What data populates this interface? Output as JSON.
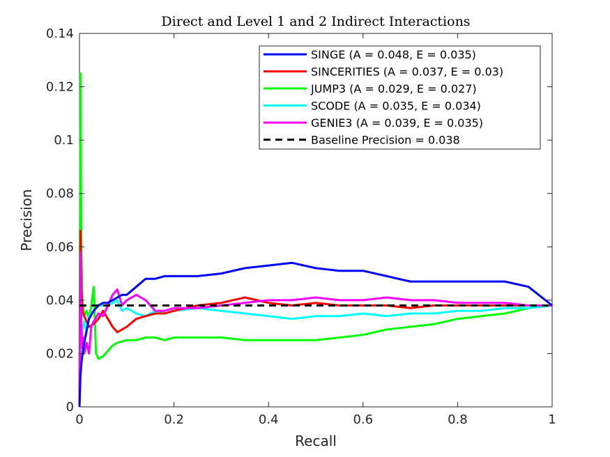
{
  "chart_data": {
    "type": "line",
    "title": "Direct and Level 1 and 2 Indirect Interactions",
    "xlabel": "Recall",
    "ylabel": "Precision",
    "xlim": [
      0,
      1
    ],
    "ylim": [
      0,
      0.14
    ],
    "xticks": [
      0,
      0.2,
      0.4,
      0.6,
      0.8,
      1
    ],
    "xtick_labels": [
      "0",
      "0.2",
      "0.4",
      "0.6",
      "0.8",
      "1"
    ],
    "yticks": [
      0,
      0.02,
      0.04,
      0.06,
      0.08,
      0.1,
      0.12,
      0.14
    ],
    "ytick_labels": [
      "0",
      "0.02",
      "0.04",
      "0.06",
      "0.08",
      "0.1",
      "0.12",
      "0.14"
    ],
    "grid": false,
    "legend_position": "top-right",
    "series": [
      {
        "name": "SINGE (A = 0.048, E = 0.035)",
        "color": "#0000ff",
        "x": [
          0,
          0.002,
          0.005,
          0.01,
          0.02,
          0.03,
          0.04,
          0.05,
          0.06,
          0.07,
          0.08,
          0.09,
          0.1,
          0.12,
          0.14,
          0.16,
          0.18,
          0.2,
          0.25,
          0.3,
          0.35,
          0.4,
          0.45,
          0.5,
          0.55,
          0.6,
          0.65,
          0.7,
          0.75,
          0.8,
          0.85,
          0.9,
          0.95,
          1
        ],
        "y": [
          0,
          0.012,
          0.018,
          0.024,
          0.033,
          0.036,
          0.038,
          0.039,
          0.039,
          0.04,
          0.041,
          0.042,
          0.042,
          0.045,
          0.048,
          0.048,
          0.049,
          0.049,
          0.049,
          0.05,
          0.052,
          0.053,
          0.054,
          0.052,
          0.051,
          0.051,
          0.049,
          0.047,
          0.047,
          0.047,
          0.047,
          0.047,
          0.045,
          0.038
        ]
      },
      {
        "name": "SINCERITIES (A = 0.037, E = 0.03)",
        "color": "#ff0000",
        "x": [
          0,
          0.002,
          0.004,
          0.006,
          0.01,
          0.015,
          0.02,
          0.03,
          0.04,
          0.05,
          0.06,
          0.07,
          0.08,
          0.09,
          0.1,
          0.12,
          0.14,
          0.16,
          0.18,
          0.2,
          0.25,
          0.3,
          0.35,
          0.4,
          0.45,
          0.5,
          0.55,
          0.6,
          0.65,
          0.7,
          0.75,
          0.8,
          0.85,
          0.9,
          0.95,
          1
        ],
        "y": [
          0,
          0.066,
          0.045,
          0.036,
          0.034,
          0.032,
          0.03,
          0.031,
          0.033,
          0.036,
          0.033,
          0.03,
          0.028,
          0.029,
          0.03,
          0.033,
          0.034,
          0.035,
          0.035,
          0.036,
          0.038,
          0.039,
          0.041,
          0.039,
          0.038,
          0.039,
          0.038,
          0.038,
          0.038,
          0.037,
          0.038,
          0.038,
          0.038,
          0.038,
          0.038,
          0.038
        ]
      },
      {
        "name": "JUMP3 (A = 0.029, E = 0.027)",
        "color": "#00ff00",
        "x": [
          0,
          0.002,
          0.004,
          0.006,
          0.01,
          0.015,
          0.02,
          0.025,
          0.03,
          0.035,
          0.04,
          0.05,
          0.06,
          0.07,
          0.08,
          0.1,
          0.12,
          0.14,
          0.16,
          0.18,
          0.2,
          0.25,
          0.3,
          0.35,
          0.4,
          0.45,
          0.5,
          0.55,
          0.6,
          0.65,
          0.7,
          0.75,
          0.8,
          0.85,
          0.9,
          0.95,
          1
        ],
        "y": [
          0,
          0.125,
          0.06,
          0.04,
          0.034,
          0.036,
          0.033,
          0.038,
          0.045,
          0.02,
          0.018,
          0.019,
          0.021,
          0.023,
          0.024,
          0.025,
          0.025,
          0.026,
          0.026,
          0.025,
          0.026,
          0.026,
          0.026,
          0.025,
          0.025,
          0.025,
          0.025,
          0.026,
          0.027,
          0.029,
          0.03,
          0.031,
          0.033,
          0.034,
          0.035,
          0.037,
          0.038
        ]
      },
      {
        "name": "SCODE (A = 0.035, E = 0.034)",
        "color": "#00ffff",
        "x": [
          0,
          0.002,
          0.005,
          0.01,
          0.015,
          0.02,
          0.03,
          0.04,
          0.05,
          0.06,
          0.07,
          0.08,
          0.09,
          0.1,
          0.12,
          0.14,
          0.16,
          0.18,
          0.2,
          0.25,
          0.3,
          0.35,
          0.4,
          0.45,
          0.5,
          0.55,
          0.6,
          0.65,
          0.7,
          0.75,
          0.8,
          0.85,
          0.9,
          0.95,
          1
        ],
        "y": [
          0,
          0.02,
          0.028,
          0.032,
          0.028,
          0.034,
          0.036,
          0.038,
          0.038,
          0.038,
          0.039,
          0.04,
          0.036,
          0.037,
          0.035,
          0.034,
          0.036,
          0.035,
          0.036,
          0.037,
          0.036,
          0.035,
          0.034,
          0.033,
          0.034,
          0.034,
          0.035,
          0.034,
          0.035,
          0.035,
          0.036,
          0.036,
          0.037,
          0.037,
          0.038
        ]
      },
      {
        "name": "GENIE3 (A = 0.039, E = 0.035)",
        "color": "#ff00ff",
        "x": [
          0,
          0.002,
          0.004,
          0.006,
          0.008,
          0.01,
          0.015,
          0.02,
          0.025,
          0.03,
          0.04,
          0.05,
          0.06,
          0.07,
          0.08,
          0.09,
          0.1,
          0.12,
          0.14,
          0.16,
          0.18,
          0.2,
          0.25,
          0.3,
          0.35,
          0.4,
          0.45,
          0.5,
          0.55,
          0.6,
          0.65,
          0.7,
          0.75,
          0.8,
          0.85,
          0.9,
          0.95,
          1
        ],
        "y": [
          0,
          0.058,
          0.03,
          0.022,
          0.026,
          0.02,
          0.024,
          0.02,
          0.03,
          0.032,
          0.035,
          0.034,
          0.038,
          0.042,
          0.044,
          0.038,
          0.04,
          0.042,
          0.04,
          0.036,
          0.036,
          0.037,
          0.037,
          0.038,
          0.039,
          0.04,
          0.04,
          0.041,
          0.04,
          0.04,
          0.041,
          0.04,
          0.04,
          0.039,
          0.039,
          0.039,
          0.038,
          0.038
        ]
      },
      {
        "name": "Baseline Precision = 0.038",
        "color": "#000000",
        "dashed": true,
        "x": [
          0,
          1
        ],
        "y": [
          0.038,
          0.038
        ]
      }
    ]
  }
}
